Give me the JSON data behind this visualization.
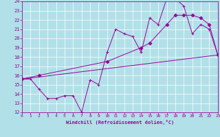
{
  "xlabel": "Windchill (Refroidissement éolien,°C)",
  "bg_color": "#b2e0e8",
  "grid_color": "#ffffff",
  "line_color": "#990099",
  "xlim": [
    0,
    23
  ],
  "ylim": [
    12,
    24
  ],
  "yticks": [
    12,
    13,
    14,
    15,
    16,
    17,
    18,
    19,
    20,
    21,
    22,
    23,
    24
  ],
  "xticks": [
    0,
    1,
    2,
    3,
    4,
    5,
    6,
    7,
    8,
    9,
    10,
    11,
    12,
    13,
    14,
    15,
    16,
    17,
    18,
    19,
    20,
    21,
    22,
    23
  ],
  "curve1_x": [
    0,
    1,
    2,
    3,
    4,
    5,
    6,
    7,
    8,
    9,
    10,
    11,
    12,
    13,
    14,
    15,
    16,
    17,
    18,
    19,
    20,
    21,
    22,
    23
  ],
  "curve1_y": [
    15.6,
    15.6,
    14.5,
    13.5,
    13.5,
    13.8,
    13.8,
    12.0,
    15.5,
    15.0,
    18.5,
    21.0,
    20.5,
    20.2,
    18.5,
    22.2,
    21.5,
    24.3,
    24.3,
    23.5,
    20.5,
    21.5,
    21.0,
    18.2
  ],
  "curve2_x": [
    0,
    23
  ],
  "curve2_y": [
    15.6,
    18.2
  ],
  "curve3_x": [
    0,
    2,
    10,
    14,
    15,
    17,
    18,
    19,
    20,
    21,
    22,
    23
  ],
  "curve3_y": [
    15.6,
    16.0,
    17.5,
    19.0,
    19.5,
    21.5,
    22.5,
    22.5,
    22.5,
    22.2,
    21.5,
    18.2
  ]
}
